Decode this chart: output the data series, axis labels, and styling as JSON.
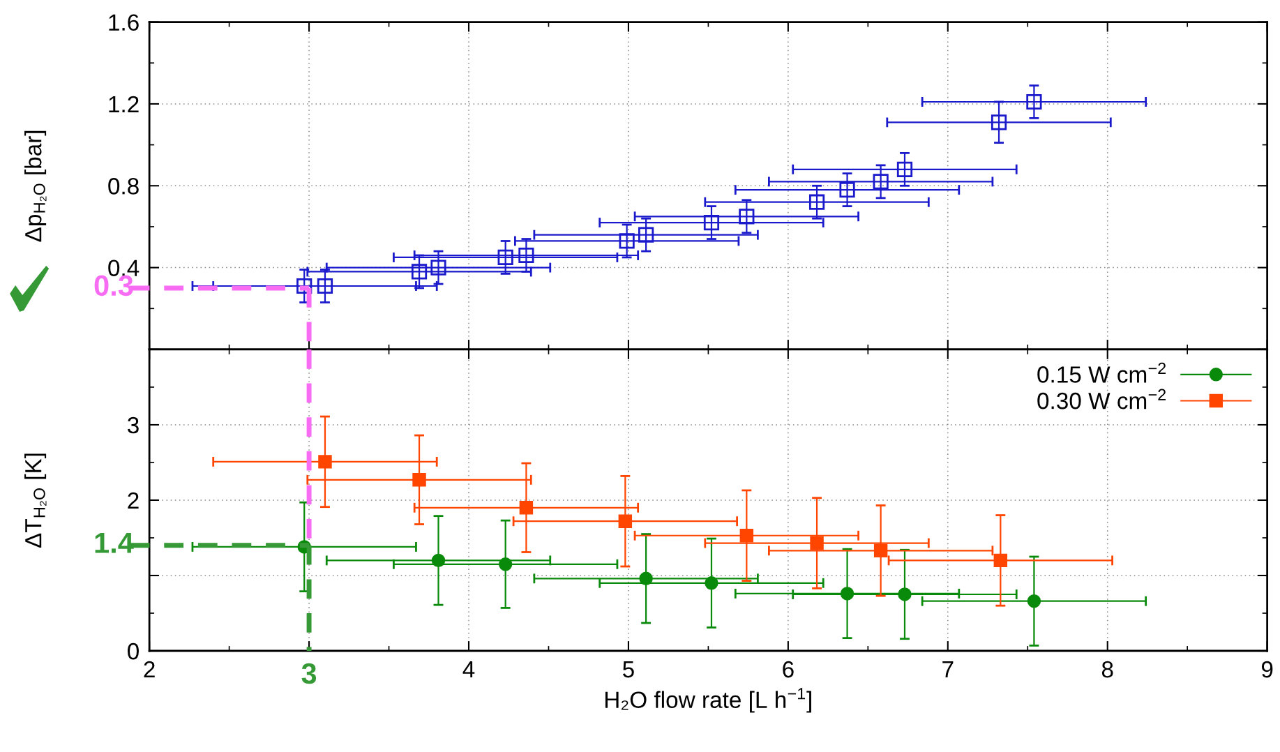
{
  "chart_data": [
    {
      "type": "scatter",
      "ylabel": "Δp$_{H₂O}$ [bar]",
      "xlim": [
        2,
        9
      ],
      "xticks": [
        2,
        3,
        4,
        5,
        6,
        7,
        8,
        9
      ],
      "ylim": [
        0,
        1.6
      ],
      "yticks": [
        {
          "value": 0,
          "label": null
        },
        0.4,
        0.8,
        1.2,
        1.6
      ],
      "tick_labels": "y",
      "grid": true,
      "marker": "square",
      "legend": false,
      "series": [
        {
          "color": "#1a1acc",
          "x": [
            2.97,
            3.1,
            3.69,
            3.81,
            4.23,
            4.36,
            4.99,
            5.11,
            5.52,
            5.74,
            6.18,
            6.37,
            6.58,
            6.73,
            7.32,
            7.54
          ],
          "values": [
            0.31,
            0.31,
            0.38,
            0.4,
            0.45,
            0.46,
            0.53,
            0.56,
            0.62,
            0.65,
            0.72,
            0.78,
            0.82,
            0.88,
            1.11,
            1.21
          ],
          "errors": [
            0.08,
            0.08,
            0.08,
            0.08,
            0.08,
            0.08,
            0.08,
            0.08,
            0.08,
            0.08,
            0.08,
            0.08,
            0.08,
            0.08,
            0.1,
            0.08
          ],
          "xerrors": [
            0.7,
            0.7,
            0.7,
            0.7,
            0.7,
            0.7,
            0.7,
            0.7,
            0.7,
            0.7,
            0.7,
            0.7,
            0.7,
            0.7,
            0.7,
            0.7
          ]
        }
      ],
      "ref_lines": [
        {
          "axis": "y",
          "value": 0.3,
          "label": "0.3",
          "color": "#f76cf3",
          "line_style": "dashed"
        },
        {
          "axis": "x",
          "value": 3,
          "label": null,
          "color": "#f76cf3",
          "line_style": "dashed"
        }
      ]
    },
    {
      "type": "scatter",
      "xlabel": "H₂O flow rate [L h$^{−1}$]",
      "ylabel": "ΔT$_{H₂O}$ [K]",
      "xlim": [
        2,
        9
      ],
      "xticks": [
        2,
        {
          "value": 3,
          "label": null
        },
        4,
        5,
        6,
        7,
        8,
        9
      ],
      "ylim": [
        0,
        4
      ],
      "yticks": [
        0,
        {
          "value": 1,
          "label": null
        },
        2,
        3,
        {
          "value": 4,
          "label": null
        }
      ],
      "grid": true,
      "legend": "top right",
      "series": [
        {
          "name": "0.15 W cm$^{−2}$",
          "color": "#0a8a0a",
          "marker": "circle",
          "x": [
            2.97,
            3.81,
            4.23,
            5.11,
            5.52,
            6.37,
            6.73,
            7.54
          ],
          "values": [
            1.38,
            1.2,
            1.15,
            0.96,
            0.9,
            0.76,
            0.75,
            0.66
          ],
          "errors": [
            0.59,
            0.59,
            0.58,
            0.59,
            0.59,
            0.59,
            0.59,
            0.59
          ],
          "xerrors": [
            0.7,
            0.7,
            0.7,
            0.7,
            0.7,
            0.7,
            0.7,
            0.7
          ]
        },
        {
          "name": "0.30 W cm$^{−2}$",
          "color": "#ff4500",
          "marker": "square",
          "x": [
            3.1,
            3.69,
            4.36,
            4.98,
            5.74,
            6.18,
            6.58,
            7.33
          ],
          "values": [
            2.51,
            2.27,
            1.9,
            1.72,
            1.53,
            1.43,
            1.33,
            1.2
          ],
          "errors": [
            0.6,
            0.59,
            0.59,
            0.6,
            0.6,
            0.6,
            0.6,
            0.6
          ],
          "xerrors": [
            0.7,
            0.7,
            0.7,
            0.7,
            0.7,
            0.7,
            0.7,
            0.7
          ]
        }
      ],
      "ref_lines": [
        {
          "axis": "x",
          "value": 3,
          "label": null,
          "color": "#f76cf3",
          "line_style": "dashed"
        },
        {
          "axis": "y",
          "value": 1.4,
          "label": "1.4",
          "color": "#359a35",
          "line_style": "dashed"
        },
        {
          "axis": "x",
          "value": 3,
          "label": "3",
          "color": "#359a35",
          "line_style": "dashed"
        }
      ]
    }
  ]
}
